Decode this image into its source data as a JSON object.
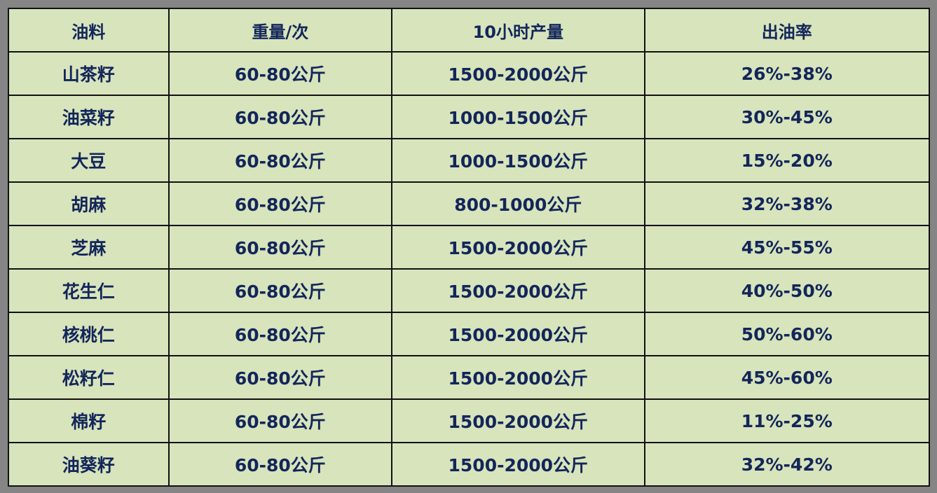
{
  "table": {
    "headers": [
      "油料",
      "重量/次",
      "10小时产量",
      "出油率"
    ],
    "rows": [
      [
        "山茶籽",
        "60-80公斤",
        "1500-2000公斤",
        "26%-38%"
      ],
      [
        "油菜籽",
        "60-80公斤",
        "1000-1500公斤",
        "30%-45%"
      ],
      [
        "大豆",
        "60-80公斤",
        "1000-1500公斤",
        "15%-20%"
      ],
      [
        "胡麻",
        "60-80公斤",
        "800-1000公斤",
        "32%-38%"
      ],
      [
        "芝麻",
        "60-80公斤",
        "1500-2000公斤",
        "45%-55%"
      ],
      [
        "花生仁",
        "60-80公斤",
        "1500-2000公斤",
        "40%-50%"
      ],
      [
        "核桃仁",
        "60-80公斤",
        "1500-2000公斤",
        "50%-60%"
      ],
      [
        "松籽仁",
        "60-80公斤",
        "1500-2000公斤",
        "45%-60%"
      ],
      [
        "棉籽",
        "60-80公斤",
        "1500-2000公斤",
        "11%-25%"
      ],
      [
        "油葵籽",
        "60-80公斤",
        "1500-2000公斤",
        "32%-42%"
      ]
    ]
  },
  "colors": {
    "background": "#858585",
    "cell": "#d8e4bc",
    "text": "#13265a",
    "border": "#111111"
  }
}
